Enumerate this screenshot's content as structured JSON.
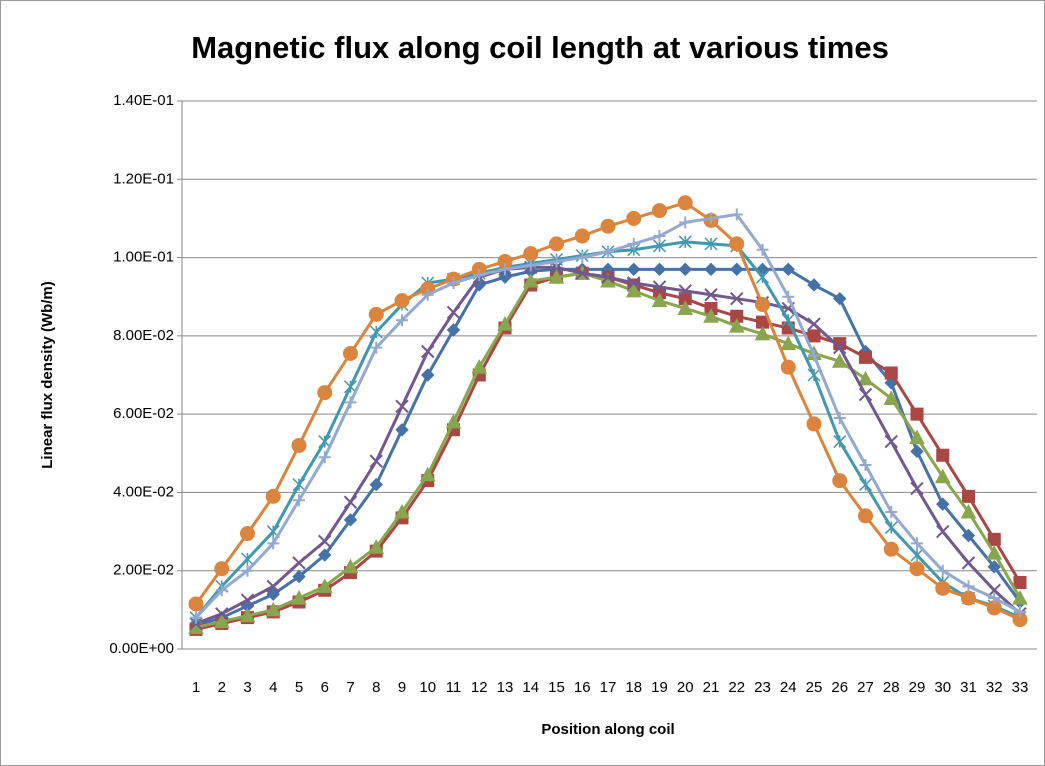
{
  "chart_data": {
    "type": "line",
    "title": "Magnetic flux along coil length at various times",
    "y_label": "Linear flux density (Wb/m)",
    "x_label": "Position along coil",
    "categories": [
      1,
      2,
      3,
      4,
      5,
      6,
      7,
      8,
      9,
      10,
      11,
      12,
      13,
      14,
      15,
      16,
      17,
      18,
      19,
      20,
      21,
      22,
      23,
      24,
      25,
      26,
      27,
      28,
      29,
      30,
      31,
      32,
      33
    ],
    "ylim": [
      0,
      0.14
    ],
    "yticks": [
      {
        "value": 0,
        "label": "0.00E+00"
      },
      {
        "value": 0.02,
        "label": "2.00E-02"
      },
      {
        "value": 0.04,
        "label": "4.00E-02"
      },
      {
        "value": 0.06,
        "label": "6.00E-02"
      },
      {
        "value": 0.08,
        "label": "8.00E-02"
      },
      {
        "value": 0.1,
        "label": "1.00E-01"
      },
      {
        "value": 0.12,
        "label": "1.20E-01"
      },
      {
        "value": 0.14,
        "label": "1.40E-01"
      }
    ],
    "grid": true,
    "series": [
      {
        "color": "#4572A7",
        "marker": "diamond",
        "values": [
          0.006,
          0.008,
          0.011,
          0.014,
          0.0185,
          0.024,
          0.033,
          0.042,
          0.056,
          0.07,
          0.0815,
          0.093,
          0.095,
          0.0965,
          0.097,
          0.097,
          0.097,
          0.097,
          0.097,
          0.097,
          0.097,
          0.097,
          0.097,
          0.097,
          0.093,
          0.0895,
          0.076,
          0.068,
          0.0505,
          0.037,
          0.029,
          0.021,
          0.012
        ]
      },
      {
        "color": "#AA4643",
        "marker": "square",
        "values": [
          0.005,
          0.0065,
          0.008,
          0.0095,
          0.012,
          0.015,
          0.0195,
          0.025,
          0.0335,
          0.043,
          0.056,
          0.07,
          0.082,
          0.093,
          0.095,
          0.096,
          0.095,
          0.093,
          0.091,
          0.0895,
          0.087,
          0.085,
          0.0835,
          0.082,
          0.08,
          0.078,
          0.0745,
          0.0705,
          0.06,
          0.0495,
          0.039,
          0.028,
          0.017
        ]
      },
      {
        "color": "#89A54E",
        "marker": "triangle",
        "values": [
          0.0055,
          0.007,
          0.0085,
          0.01,
          0.013,
          0.016,
          0.021,
          0.026,
          0.035,
          0.0445,
          0.058,
          0.072,
          0.083,
          0.094,
          0.095,
          0.096,
          0.094,
          0.0915,
          0.089,
          0.087,
          0.085,
          0.0825,
          0.0805,
          0.078,
          0.0755,
          0.0735,
          0.069,
          0.064,
          0.054,
          0.044,
          0.035,
          0.0245,
          0.013
        ]
      },
      {
        "color": "#71588F",
        "marker": "x",
        "values": [
          0.0065,
          0.009,
          0.0125,
          0.016,
          0.022,
          0.0275,
          0.0375,
          0.048,
          0.062,
          0.076,
          0.086,
          0.095,
          0.097,
          0.0975,
          0.0975,
          0.096,
          0.095,
          0.0935,
          0.0925,
          0.0915,
          0.0905,
          0.0895,
          0.0885,
          0.087,
          0.083,
          0.077,
          0.065,
          0.053,
          0.041,
          0.03,
          0.022,
          0.015,
          0.009
        ]
      },
      {
        "color": "#4198AF",
        "marker": "star",
        "values": [
          0.008,
          0.016,
          0.023,
          0.03,
          0.042,
          0.053,
          0.067,
          0.081,
          0.088,
          0.0935,
          0.0945,
          0.096,
          0.0975,
          0.0985,
          0.0995,
          0.1005,
          0.1015,
          0.102,
          0.103,
          0.104,
          0.1035,
          0.103,
          0.095,
          0.084,
          0.07,
          0.053,
          0.042,
          0.031,
          0.024,
          0.017,
          0.013,
          0.011,
          0.008
        ]
      },
      {
        "color": "#DB843D",
        "marker": "circle",
        "values": [
          0.0115,
          0.0205,
          0.0295,
          0.039,
          0.052,
          0.0655,
          0.0755,
          0.0855,
          0.089,
          0.092,
          0.0945,
          0.097,
          0.099,
          0.101,
          0.1035,
          0.1055,
          0.108,
          0.11,
          0.112,
          0.114,
          0.1095,
          0.1035,
          0.088,
          0.072,
          0.0575,
          0.043,
          0.034,
          0.0255,
          0.0205,
          0.0155,
          0.013,
          0.0105,
          0.0075
        ]
      },
      {
        "color": "#93A9CF",
        "marker": "plus",
        "values": [
          0.008,
          0.015,
          0.02,
          0.027,
          0.038,
          0.049,
          0.063,
          0.077,
          0.084,
          0.0905,
          0.0935,
          0.0955,
          0.097,
          0.098,
          0.099,
          0.1,
          0.1015,
          0.1035,
          0.1055,
          0.109,
          0.11,
          0.111,
          0.102,
          0.09,
          0.075,
          0.059,
          0.047,
          0.035,
          0.027,
          0.02,
          0.016,
          0.013,
          0.0095
        ]
      }
    ]
  }
}
